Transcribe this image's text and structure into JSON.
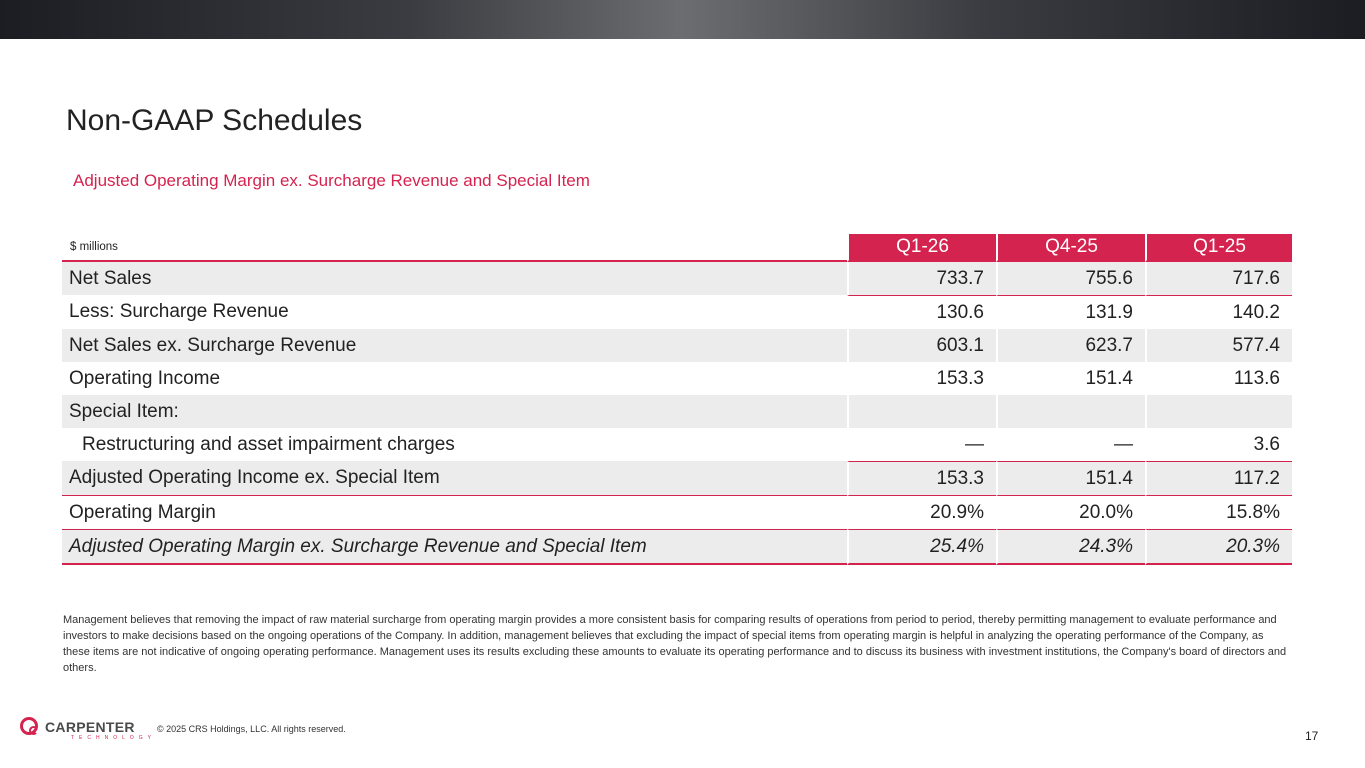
{
  "header": {
    "title": "Non-GAAP Schedules",
    "subtitle": "Adjusted Operating Margin ex. Surcharge Revenue and Special Item"
  },
  "table": {
    "units": "$ millions",
    "periods": [
      "Q1-26",
      "Q4-25",
      "Q1-25"
    ],
    "rows": [
      {
        "label": "Net Sales",
        "values": [
          "733.7",
          "755.6",
          "717.6"
        ]
      },
      {
        "label": "Less: Surcharge Revenue",
        "values": [
          "130.6",
          "131.9",
          "140.2"
        ]
      },
      {
        "label": "Net Sales ex. Surcharge Revenue",
        "values": [
          "603.1",
          "623.7",
          "577.4"
        ]
      },
      {
        "label": "Operating Income",
        "values": [
          "153.3",
          "151.4",
          "113.6"
        ]
      },
      {
        "label": "Special Item:",
        "values": [
          "",
          "",
          ""
        ]
      },
      {
        "label": "Restructuring and asset impairment charges",
        "values": [
          "—",
          "—",
          "3.6"
        ]
      },
      {
        "label": "Adjusted Operating Income ex. Special Item",
        "values": [
          "153.3",
          "151.4",
          "117.2"
        ]
      },
      {
        "label": "Operating Margin",
        "values": [
          "20.9%",
          "20.0%",
          "15.8%"
        ]
      },
      {
        "label": "Adjusted Operating Margin ex. Surcharge Revenue and Special Item",
        "values": [
          "25.4%",
          "24.3%",
          "20.3%"
        ]
      }
    ]
  },
  "note": "Management believes that removing the impact of raw material surcharge from operating margin provides a more consistent basis for comparing results of operations from period to period, thereby permitting management to evaluate performance and investors to make decisions based on the ongoing operations of the Company. In addition, management believes that excluding the impact of special items from operating margin is helpful in analyzing the operating performance of the Company, as these items are not indicative of ongoing operating performance. Management uses its results excluding these amounts to evaluate its operating performance and to discuss its business with investment institutions, the Company's board of directors and others.",
  "footer": {
    "logo_name": "CARPENTER",
    "logo_sub": "TECHNOLOGY",
    "copyright": "© 2025 CRS Holdings, LLC. All rights reserved.",
    "page_number": "17"
  },
  "colors": {
    "accent": "#d5234f",
    "row_shade": "#ececec"
  }
}
